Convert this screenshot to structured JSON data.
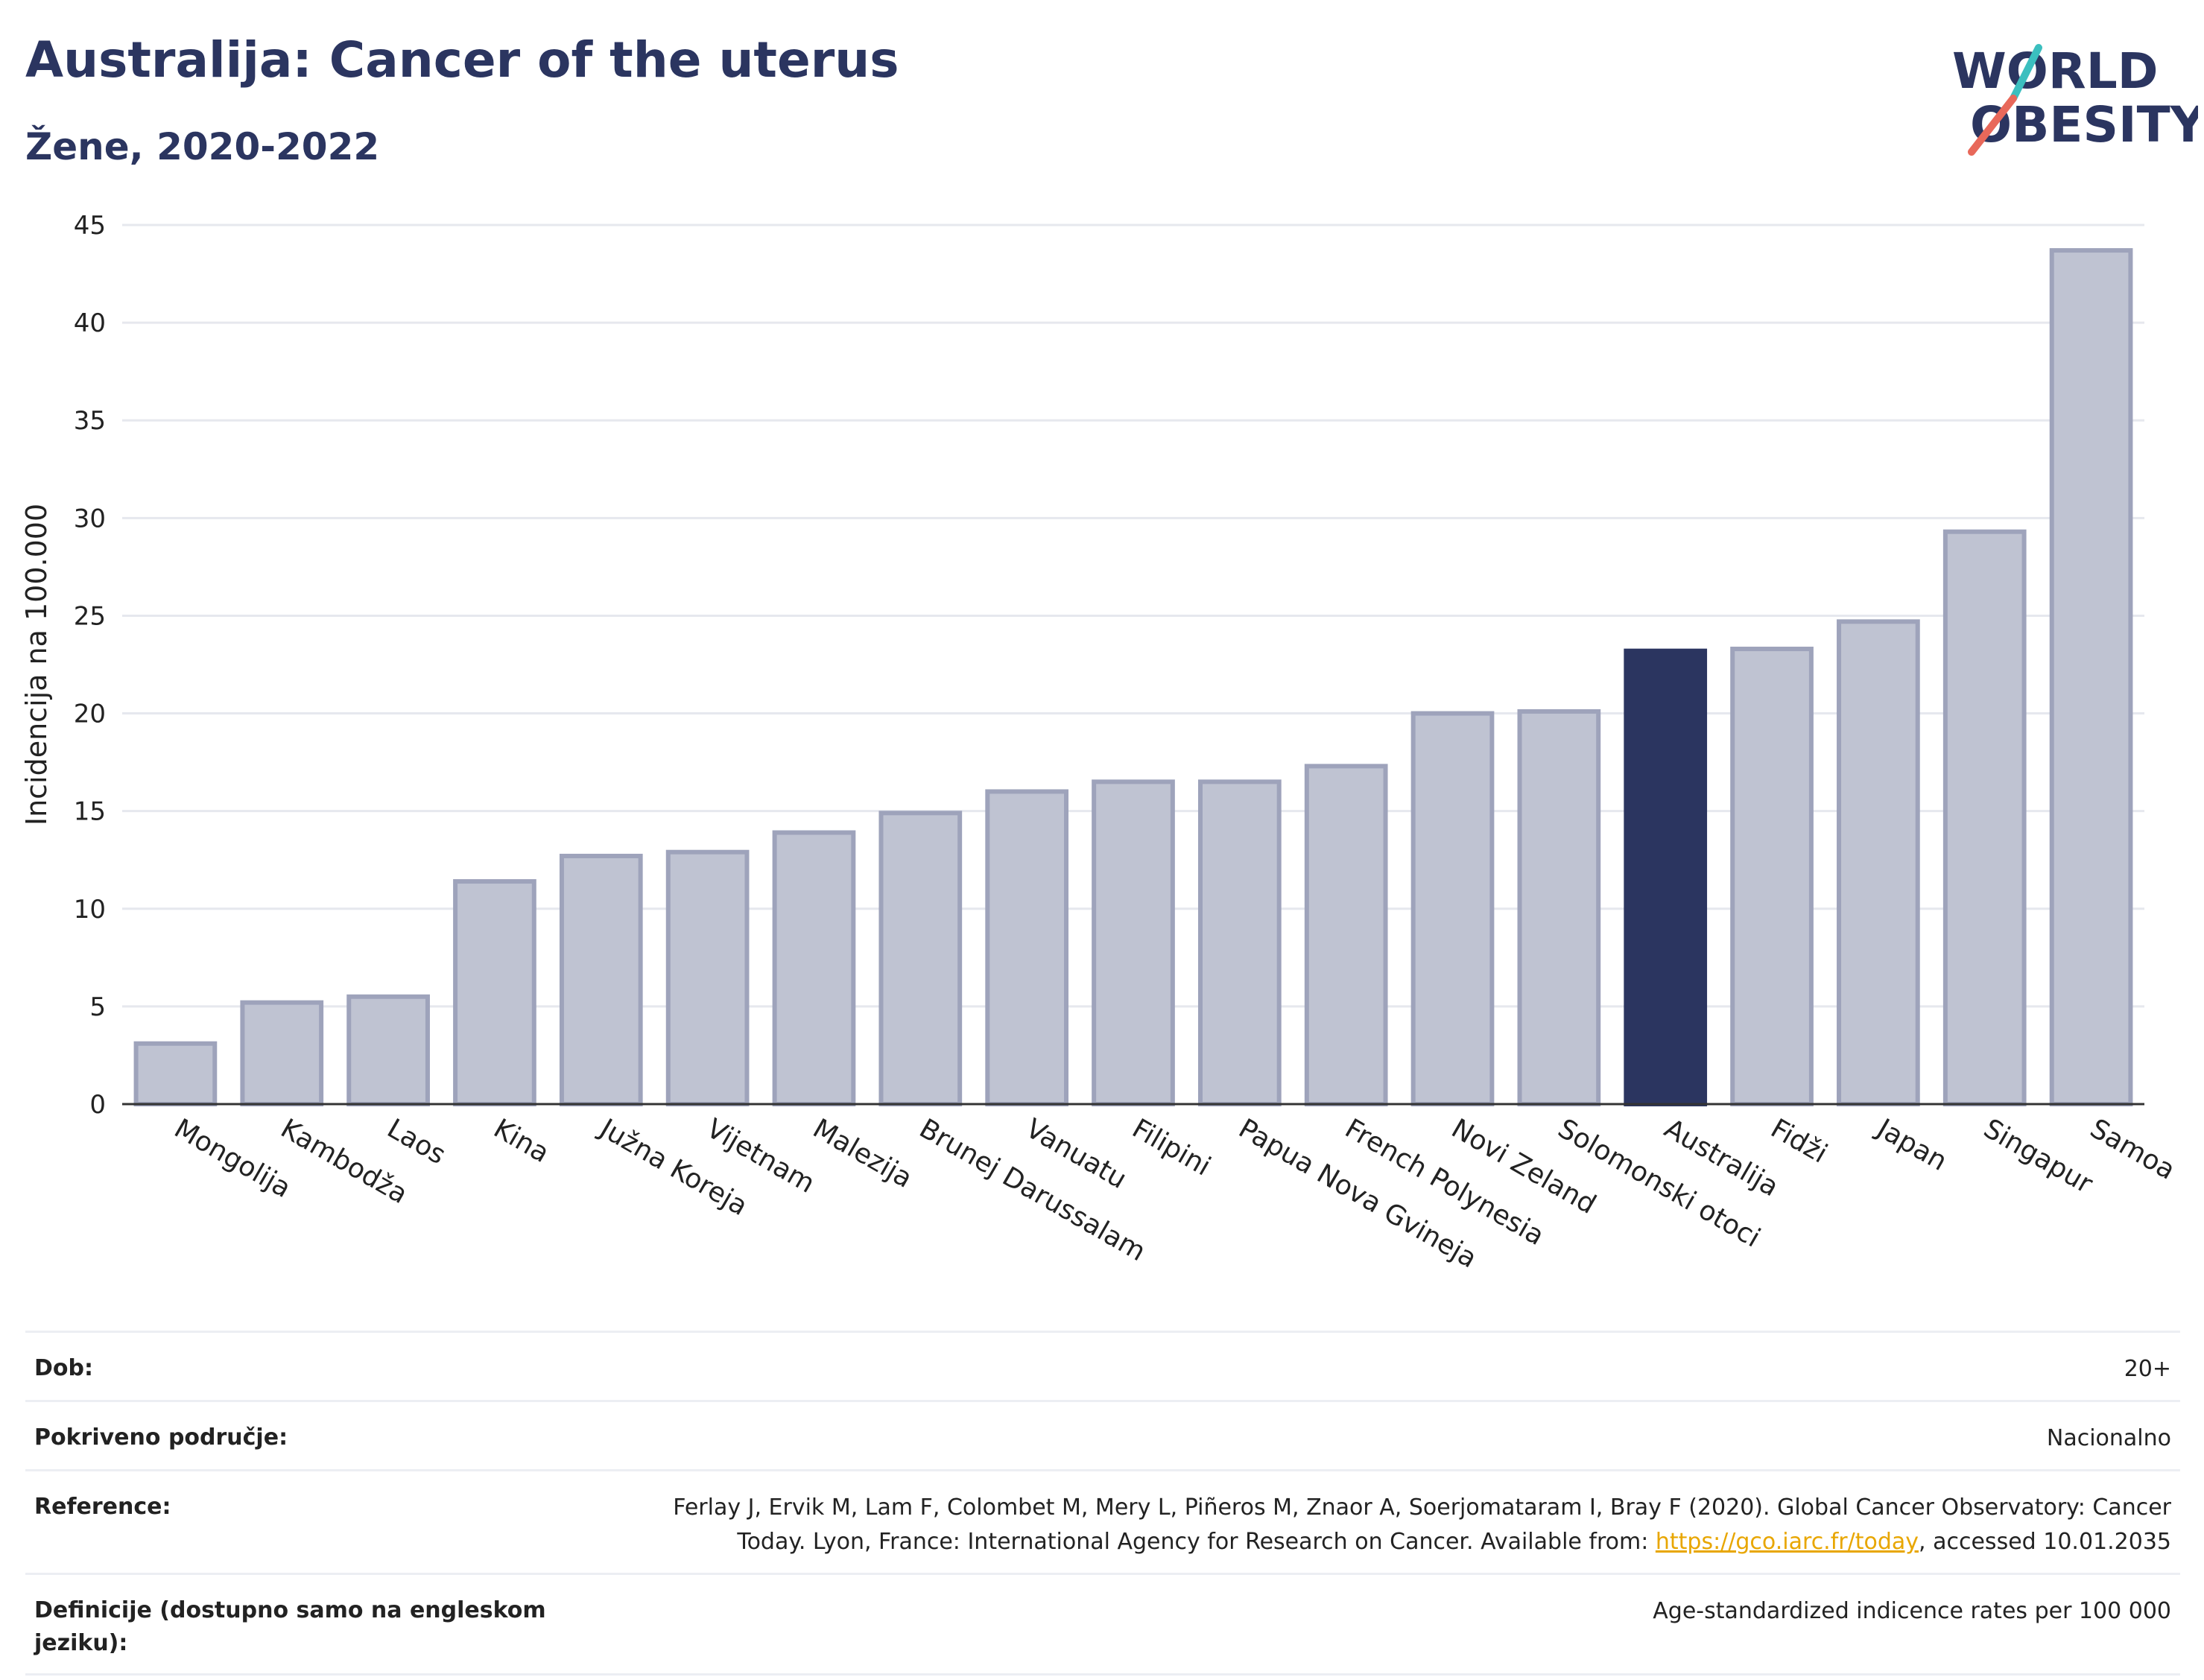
{
  "title": "Australija: Cancer of the uterus",
  "subtitle": "Žene, 2020-2022",
  "logo": {
    "line1": "WORLD",
    "line2": "OBESITY",
    "colors": {
      "text": "#2b3560",
      "teal": "#3bbfbf",
      "coral": "#e8685a"
    }
  },
  "colors": {
    "bar": "#bfc3d2",
    "bar_border": "#9ea3bb",
    "highlight": "#2b3560",
    "grid": "#e6e8ee",
    "axis": "#333333",
    "link": "#e8a600"
  },
  "chart_data": {
    "type": "bar",
    "categories": [
      "Mongolija",
      "Kambodža",
      "Laos",
      "Kina",
      "Južna Koreja",
      "Vijetnam",
      "Malezija",
      "Brunej Darussalam",
      "Vanuatu",
      "Filipini",
      "Papua Nova Gvineja",
      "French Polynesia",
      "Novi Zeland",
      "Solomonski otoci",
      "Australija",
      "Fidži",
      "Japan",
      "Singapur",
      "Samoa"
    ],
    "values": [
      3.1,
      5.2,
      5.5,
      11.4,
      12.7,
      12.9,
      13.9,
      14.9,
      16.0,
      16.5,
      16.5,
      17.3,
      20.0,
      20.1,
      23.2,
      23.3,
      24.7,
      29.3,
      43.7
    ],
    "highlight": "Australija",
    "ylabel": "Incidencija na 100.000",
    "xlabel": "",
    "ylim": [
      0,
      45
    ],
    "yticks": [
      "0",
      "5",
      "10",
      "15",
      "20",
      "25",
      "30",
      "35",
      "40",
      "45"
    ],
    "grid": true
  },
  "meta": {
    "age_label": "Dob:",
    "age_value": "20+",
    "coverage_label": "Pokriveno područje:",
    "coverage_value": "Nacionalno",
    "reference_label": "Reference:",
    "reference_line1": "Ferlay J, Ervik M, Lam F, Colombet M, Mery L, Piñeros M, Znaor A, Soerjomataram I, Bray F (2020). Global Cancer Observatory: Cancer",
    "reference_line2_pre": "Today. Lyon, France: International Agency for Research on Cancer. Available from: ",
    "reference_link": "https://gco.iarc.fr/today",
    "reference_line2_post": ", accessed 10.01.2035",
    "definitions_label": "Definicije (dostupno samo na engleskom jeziku):",
    "definitions_value": "Age-standardized indicence rates per 100 000"
  }
}
